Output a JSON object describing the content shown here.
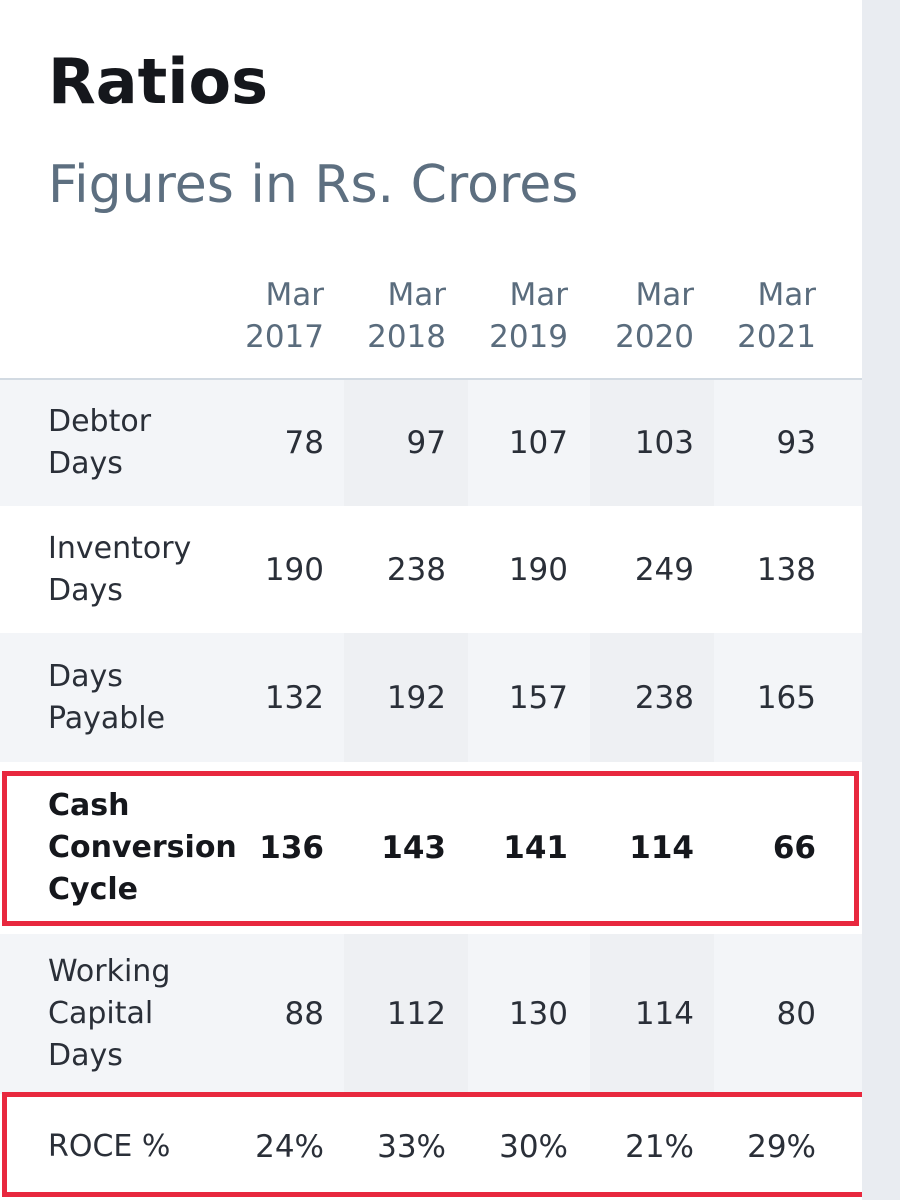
{
  "title": "Ratios",
  "subtitle": "Figures in Rs. Crores",
  "columns": [
    {
      "month": "Mar",
      "year": "2017"
    },
    {
      "month": "Mar",
      "year": "2018"
    },
    {
      "month": "Mar",
      "year": "2019"
    },
    {
      "month": "Mar",
      "year": "2020"
    },
    {
      "month": "Mar",
      "year": "2021"
    }
  ],
  "rows": [
    {
      "label_lines": [
        "Debtor",
        "Days"
      ],
      "values": [
        "78",
        "97",
        "107",
        "103",
        "93"
      ],
      "bold": false,
      "highlight": false
    },
    {
      "label_lines": [
        "Inventory",
        "Days"
      ],
      "values": [
        "190",
        "238",
        "190",
        "249",
        "138"
      ],
      "bold": false,
      "highlight": false
    },
    {
      "label_lines": [
        "Days",
        "Payable"
      ],
      "values": [
        "132",
        "192",
        "157",
        "238",
        "165"
      ],
      "bold": false,
      "highlight": false
    },
    {
      "label_lines": [
        "Cash",
        "Conversion",
        "Cycle"
      ],
      "values": [
        "136",
        "143",
        "141",
        "114",
        "66"
      ],
      "bold": true,
      "highlight": true
    },
    {
      "label_lines": [
        "Working",
        "Capital",
        "Days"
      ],
      "values": [
        "88",
        "112",
        "130",
        "114",
        "80"
      ],
      "bold": false,
      "highlight": false
    },
    {
      "label_lines": [
        "ROCE %"
      ],
      "values": [
        "24%",
        "33%",
        "30%",
        "21%",
        "29%"
      ],
      "bold": false,
      "highlight": true
    }
  ],
  "colors": {
    "highlight_border": "#e8283e",
    "header_text": "#5a6c7d",
    "row_shade": "#f3f5f8"
  }
}
